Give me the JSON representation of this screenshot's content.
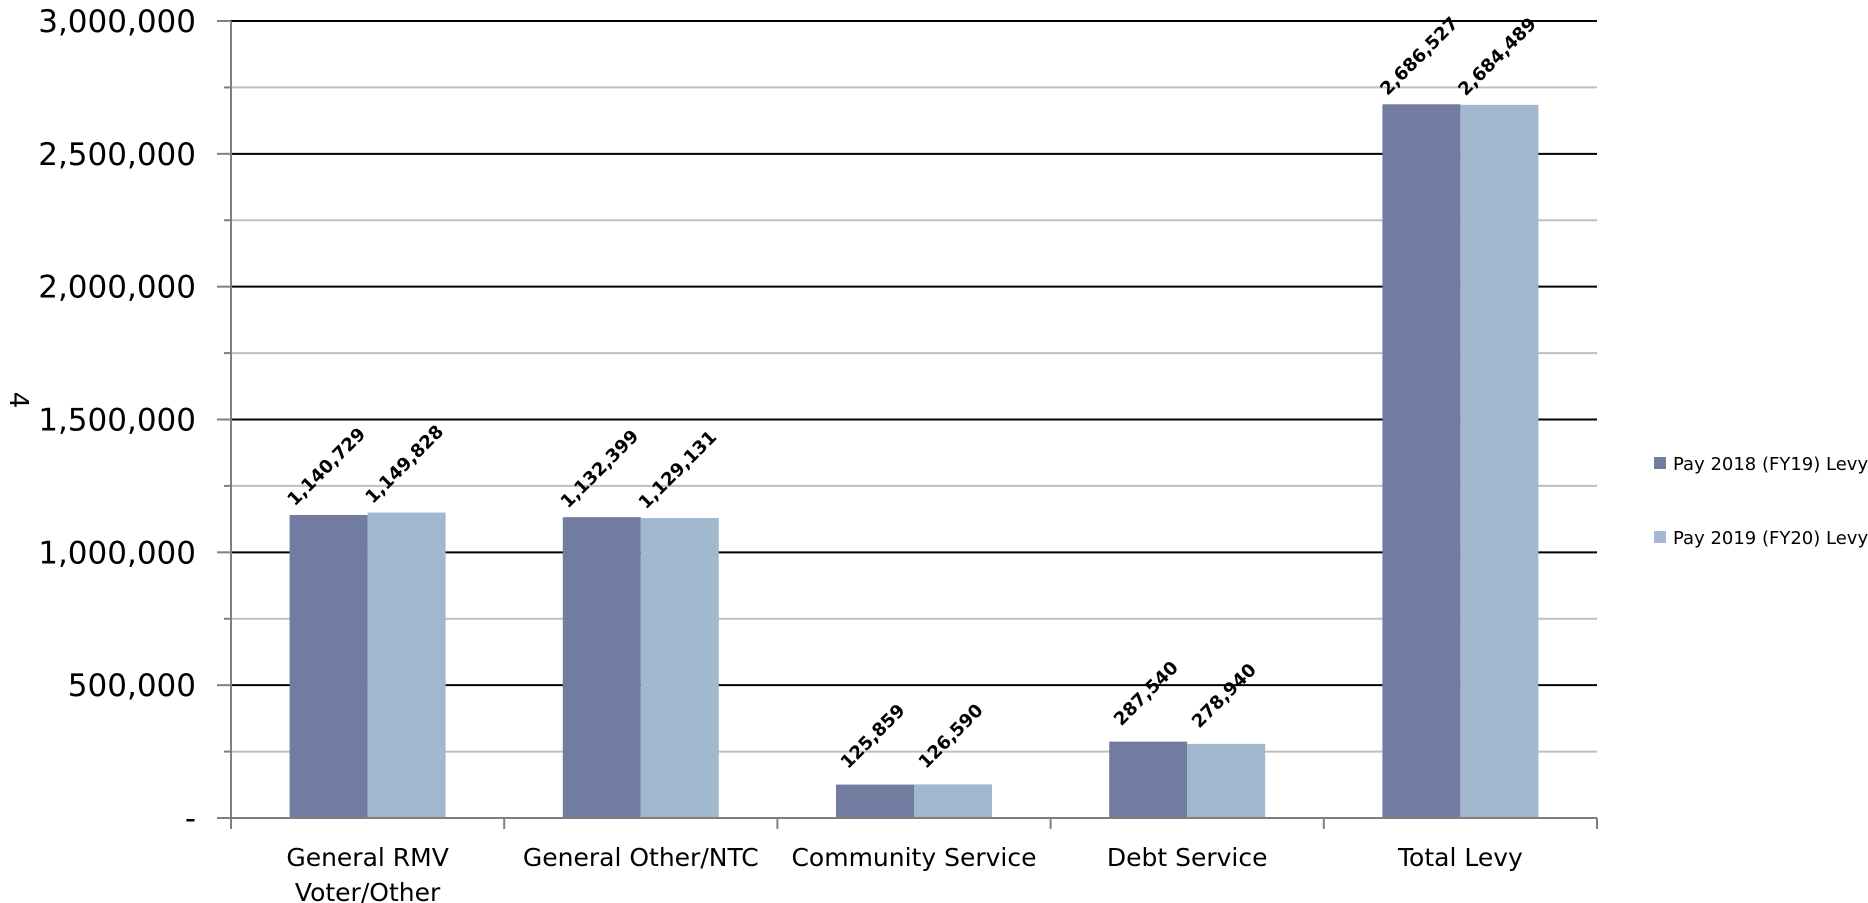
{
  "chart_data": {
    "type": "bar",
    "ylabel": "4",
    "categories": [
      [
        "General RMV",
        "Voter/Other"
      ],
      [
        "General Other/NTC"
      ],
      [
        "Community Service"
      ],
      [
        "Debt Service"
      ],
      [
        "Total Levy"
      ]
    ],
    "series": [
      {
        "name": "Pay 2018 (FY19) Levy",
        "color": "#727ca0",
        "values": [
          1140729,
          1132399,
          125859,
          287540,
          2686527
        ],
        "labels": [
          "1,140,729",
          "1,132,399",
          "125,859",
          "287,540",
          "2,686,527"
        ]
      },
      {
        "name": "Pay 2019 (FY20) Levy",
        "color": "#a1b8ce",
        "values": [
          1149828,
          1129131,
          126590,
          278940,
          2684489
        ],
        "labels": [
          "1,149,828",
          "1,129,131",
          "126,590",
          "278,940",
          "2,684,489"
        ]
      }
    ],
    "ylim": [
      0,
      3000000
    ],
    "yticks": [
      0,
      500000,
      1000000,
      1500000,
      2000000,
      2500000,
      3000000
    ],
    "ytick_labels": [
      "-",
      "500,000",
      "1,000,000",
      "1,500,000",
      "2,000,000",
      "2,500,000",
      "3,000,000"
    ],
    "minor_gridlines": true,
    "legend_position": "right"
  }
}
